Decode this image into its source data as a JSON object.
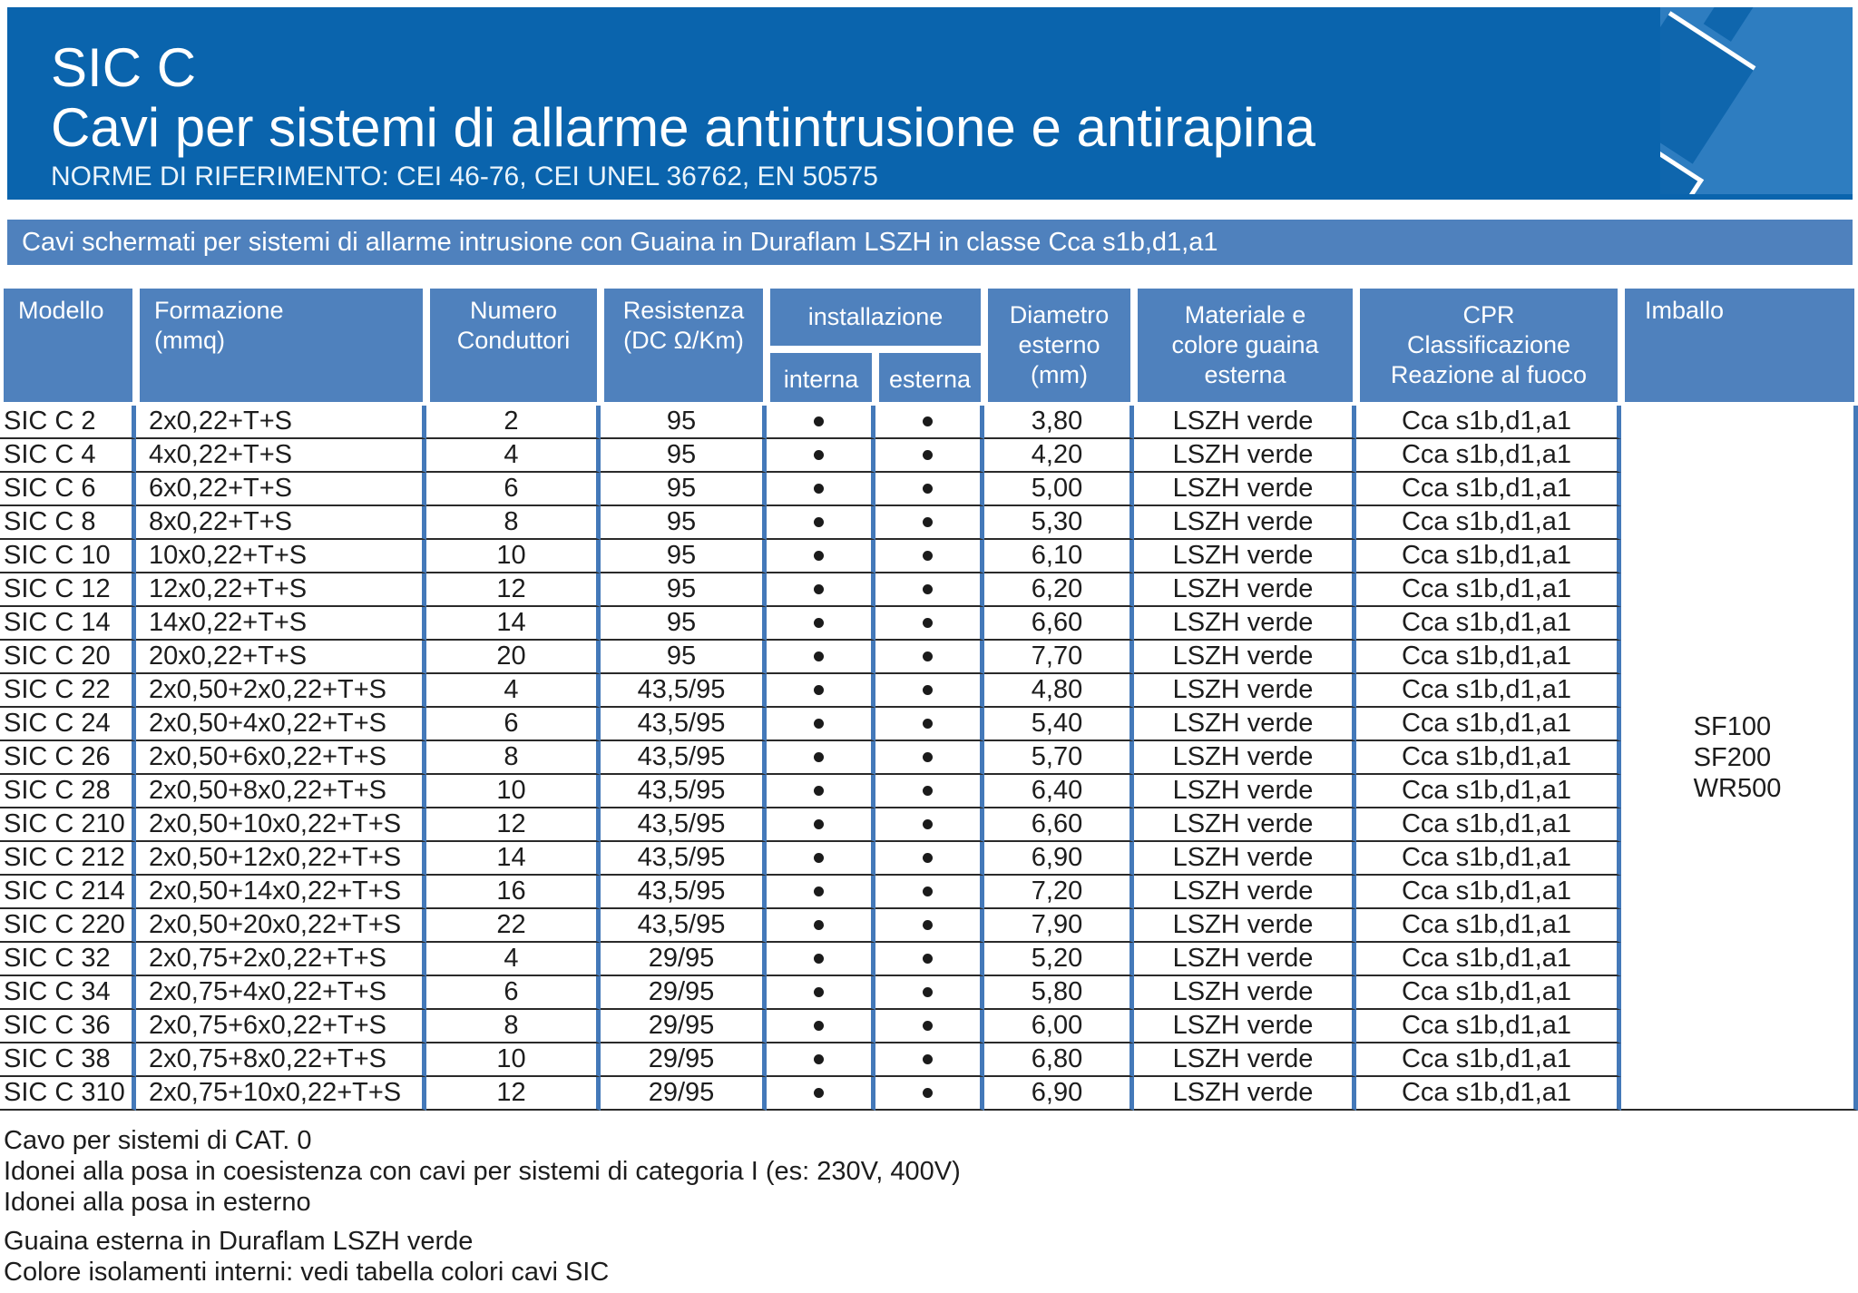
{
  "header": {
    "product_code": "SIC C",
    "title": "Cavi per sistemi di allarme antintrusione e antirapina",
    "norms": "NORME DI RIFERIMENTO: CEI 46-76, CEI UNEL 36762, EN 50575",
    "subtitle": "Cavi schermati per sistemi di allarme intrusione con Guaina in Duraflam LSZH in classe Cca s1b,d1,a1"
  },
  "colors": {
    "banner_blue": "#0a64ad",
    "accent_blue": "#4f81bd",
    "border_blue": "#4479b9"
  },
  "table": {
    "headers": {
      "model": "Modello",
      "formation": "Formazione\n(mmq)",
      "conductors": "Numero\nConduttori",
      "resistance": "Resistenza\n(DC Ω/Km)",
      "installation": "installazione",
      "installation_internal": "interna",
      "installation_external": "esterna",
      "diameter": "Diametro\nesterno\n(mm)",
      "material": "Materiale e\ncolore guaina\nesterna",
      "cpr": "CPR\nClassificazione\nReazione al fuoco",
      "packaging": "Imballo"
    },
    "rows": [
      {
        "model": "SIC C 2",
        "formation": "2x0,22+T+S",
        "conductors": "2",
        "resistance": "95",
        "internal": true,
        "external": true,
        "diameter": "3,80",
        "material": "LSZH verde",
        "cpr": "Cca s1b,d1,a1"
      },
      {
        "model": "SIC C 4",
        "formation": "4x0,22+T+S",
        "conductors": "4",
        "resistance": "95",
        "internal": true,
        "external": true,
        "diameter": "4,20",
        "material": "LSZH verde",
        "cpr": "Cca s1b,d1,a1"
      },
      {
        "model": "SIC C 6",
        "formation": "6x0,22+T+S",
        "conductors": "6",
        "resistance": "95",
        "internal": true,
        "external": true,
        "diameter": "5,00",
        "material": "LSZH verde",
        "cpr": "Cca s1b,d1,a1"
      },
      {
        "model": "SIC C 8",
        "formation": "8x0,22+T+S",
        "conductors": "8",
        "resistance": "95",
        "internal": true,
        "external": true,
        "diameter": "5,30",
        "material": "LSZH verde",
        "cpr": "Cca s1b,d1,a1"
      },
      {
        "model": "SIC C 10",
        "formation": "10x0,22+T+S",
        "conductors": "10",
        "resistance": "95",
        "internal": true,
        "external": true,
        "diameter": "6,10",
        "material": "LSZH verde",
        "cpr": "Cca s1b,d1,a1"
      },
      {
        "model": "SIC C 12",
        "formation": "12x0,22+T+S",
        "conductors": "12",
        "resistance": "95",
        "internal": true,
        "external": true,
        "diameter": "6,20",
        "material": "LSZH verde",
        "cpr": "Cca s1b,d1,a1"
      },
      {
        "model": "SIC C 14",
        "formation": "14x0,22+T+S",
        "conductors": "14",
        "resistance": "95",
        "internal": true,
        "external": true,
        "diameter": "6,60",
        "material": "LSZH verde",
        "cpr": "Cca s1b,d1,a1"
      },
      {
        "model": "SIC C 20",
        "formation": "20x0,22+T+S",
        "conductors": "20",
        "resistance": "95",
        "internal": true,
        "external": true,
        "diameter": "7,70",
        "material": "LSZH verde",
        "cpr": "Cca s1b,d1,a1"
      },
      {
        "model": "SIC C 22",
        "formation": "2x0,50+2x0,22+T+S",
        "conductors": "4",
        "resistance": "43,5/95",
        "internal": true,
        "external": true,
        "diameter": "4,80",
        "material": "LSZH verde",
        "cpr": "Cca s1b,d1,a1"
      },
      {
        "model": "SIC C 24",
        "formation": "2x0,50+4x0,22+T+S",
        "conductors": "6",
        "resistance": "43,5/95",
        "internal": true,
        "external": true,
        "diameter": "5,40",
        "material": "LSZH verde",
        "cpr": "Cca s1b,d1,a1"
      },
      {
        "model": "SIC C 26",
        "formation": "2x0,50+6x0,22+T+S",
        "conductors": "8",
        "resistance": "43,5/95",
        "internal": true,
        "external": true,
        "diameter": "5,70",
        "material": "LSZH verde",
        "cpr": "Cca s1b,d1,a1"
      },
      {
        "model": "SIC C 28",
        "formation": "2x0,50+8x0,22+T+S",
        "conductors": "10",
        "resistance": "43,5/95",
        "internal": true,
        "external": true,
        "diameter": "6,40",
        "material": "LSZH verde",
        "cpr": "Cca s1b,d1,a1"
      },
      {
        "model": "SIC C 210",
        "formation": "2x0,50+10x0,22+T+S",
        "conductors": "12",
        "resistance": "43,5/95",
        "internal": true,
        "external": true,
        "diameter": "6,60",
        "material": "LSZH verde",
        "cpr": "Cca s1b,d1,a1"
      },
      {
        "model": "SIC C 212",
        "formation": "2x0,50+12x0,22+T+S",
        "conductors": "14",
        "resistance": "43,5/95",
        "internal": true,
        "external": true,
        "diameter": "6,90",
        "material": "LSZH verde",
        "cpr": "Cca s1b,d1,a1"
      },
      {
        "model": "SIC C 214",
        "formation": "2x0,50+14x0,22+T+S",
        "conductors": "16",
        "resistance": "43,5/95",
        "internal": true,
        "external": true,
        "diameter": "7,20",
        "material": "LSZH verde",
        "cpr": "Cca s1b,d1,a1"
      },
      {
        "model": "SIC C 220",
        "formation": "2x0,50+20x0,22+T+S",
        "conductors": "22",
        "resistance": "43,5/95",
        "internal": true,
        "external": true,
        "diameter": "7,90",
        "material": "LSZH verde",
        "cpr": "Cca s1b,d1,a1"
      },
      {
        "model": "SIC C 32",
        "formation": "2x0,75+2x0,22+T+S",
        "conductors": "4",
        "resistance": "29/95",
        "internal": true,
        "external": true,
        "diameter": "5,20",
        "material": "LSZH verde",
        "cpr": "Cca s1b,d1,a1"
      },
      {
        "model": "SIC C 34",
        "formation": "2x0,75+4x0,22+T+S",
        "conductors": "6",
        "resistance": "29/95",
        "internal": true,
        "external": true,
        "diameter": "5,80",
        "material": "LSZH verde",
        "cpr": "Cca s1b,d1,a1"
      },
      {
        "model": "SIC C 36",
        "formation": "2x0,75+6x0,22+T+S",
        "conductors": "8",
        "resistance": "29/95",
        "internal": true,
        "external": true,
        "diameter": "6,00",
        "material": "LSZH verde",
        "cpr": "Cca s1b,d1,a1"
      },
      {
        "model": "SIC C 38",
        "formation": "2x0,75+8x0,22+T+S",
        "conductors": "10",
        "resistance": "29/95",
        "internal": true,
        "external": true,
        "diameter": "6,80",
        "material": "LSZH verde",
        "cpr": "Cca s1b,d1,a1"
      },
      {
        "model": "SIC C 310",
        "formation": "2x0,75+10x0,22+T+S",
        "conductors": "12",
        "resistance": "29/95",
        "internal": true,
        "external": true,
        "diameter": "6,90",
        "material": "LSZH verde",
        "cpr": "Cca s1b,d1,a1"
      }
    ],
    "packaging_options": [
      "SF100",
      "SF200",
      "WR500"
    ]
  },
  "footer": {
    "notes": [
      "Cavo per sistemi di CAT. 0",
      "Idonei alla posa in coesistenza con cavi per sistemi di categoria I (es: 230V, 400V)",
      "Idonei alla posa in esterno",
      "Guaina esterna in Duraflam LSZH verde",
      "Colore isolamenti interni: vedi tabella colori cavi SIC"
    ]
  }
}
